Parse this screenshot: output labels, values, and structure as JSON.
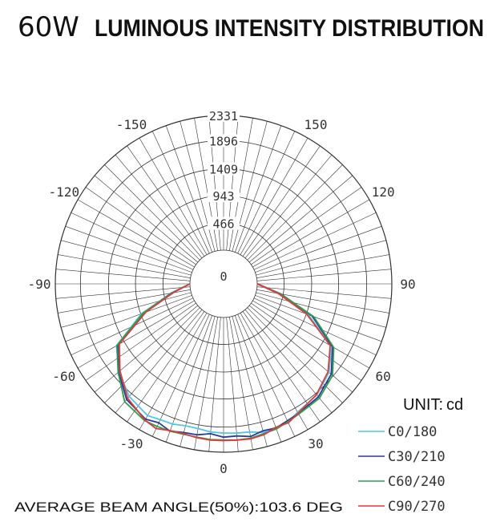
{
  "chart_data": {
    "type": "polar-line",
    "title_prefix": "60W",
    "title": "LUMINOUS INTENSITY DISTRIBUTION",
    "unit_prefix": "UNIT:",
    "unit": "cd",
    "footer": "AVERAGE BEAM ANGLE(50%):103.6 DEG",
    "radial_max": 2331,
    "radial_ticks": [
      466,
      943,
      1409,
      1896,
      2331
    ],
    "radial_tick_labels": [
      "466",
      "943",
      "1409",
      "1896",
      "2331"
    ],
    "angle_ticks": [
      0,
      30,
      60,
      90,
      120,
      150,
      -30,
      -60,
      -90,
      -120,
      -150
    ],
    "angle_tick_labels": [
      "0",
      "30",
      "60",
      "90",
      "120",
      "150",
      "-30",
      "-60",
      "-90",
      "-120",
      "-150"
    ],
    "center_label": "0",
    "series": [
      {
        "name": "C0/180",
        "color": "#4fc8e8",
        "angles": [
          -90,
          -80,
          -70,
          -60,
          -50,
          -40,
          -30,
          -25,
          -20,
          -15,
          -10,
          -5,
          0,
          5,
          10,
          15,
          20,
          25,
          30,
          40,
          50,
          60,
          70,
          80,
          90
        ],
        "values": [
          0,
          340,
          930,
          1560,
          1780,
          1960,
          2050,
          2010,
          2000,
          1960,
          1960,
          1990,
          2000,
          2010,
          2020,
          2080,
          2060,
          2060,
          1980,
          1930,
          1800,
          1580,
          980,
          380,
          0
        ]
      },
      {
        "name": "C30/210",
        "color": "#2a3a9a",
        "angles": [
          -90,
          -80,
          -70,
          -60,
          -50,
          -40,
          -30,
          -25,
          -20,
          -15,
          -10,
          -5,
          0,
          5,
          10,
          15,
          20,
          25,
          30,
          40,
          50,
          60,
          70,
          80,
          90
        ],
        "values": [
          0,
          330,
          880,
          1530,
          1790,
          2030,
          2120,
          2070,
          2130,
          2080,
          2070,
          2020,
          2070,
          2060,
          2100,
          2050,
          2070,
          2030,
          2010,
          1970,
          1850,
          1600,
          1050,
          430,
          0
        ]
      },
      {
        "name": "C60/240",
        "color": "#2e9e4e",
        "angles": [
          -90,
          -80,
          -70,
          -60,
          -50,
          -40,
          -30,
          -25,
          -20,
          -15,
          -10,
          -5,
          0,
          5,
          10,
          15,
          20,
          25,
          30,
          40,
          50,
          60,
          70,
          80,
          90
        ],
        "values": [
          0,
          320,
          900,
          1550,
          1800,
          2080,
          2150,
          2140,
          2130,
          2110,
          2110,
          2120,
          2120,
          2130,
          2130,
          2100,
          2090,
          2050,
          2020,
          2000,
          1880,
          1620,
          1080,
          420,
          0
        ]
      },
      {
        "name": "C90/270",
        "color": "#e03a3a",
        "angles": [
          -90,
          -80,
          -70,
          -60,
          -50,
          -40,
          -30,
          -25,
          -20,
          -15,
          -10,
          -5,
          0,
          5,
          10,
          15,
          20,
          25,
          30,
          40,
          50,
          60,
          70,
          80,
          90
        ],
        "values": [
          0,
          300,
          850,
          1500,
          1760,
          2000,
          2140,
          2180,
          2120,
          2100,
          2120,
          2130,
          2130,
          2130,
          2140,
          2120,
          2060,
          2070,
          2000,
          1920,
          1780,
          1550,
          950,
          380,
          0
        ]
      }
    ],
    "legend_position": "bottom-right",
    "grid": true
  }
}
